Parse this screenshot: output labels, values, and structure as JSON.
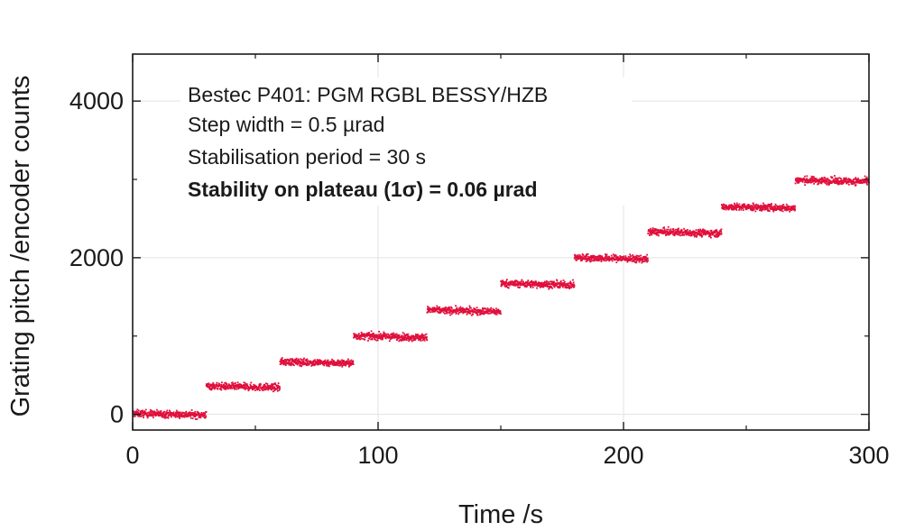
{
  "chart_data": {
    "type": "scatter",
    "title": "",
    "xlabel": "Time /s",
    "ylabel": "Grating pitch /encoder counts",
    "xlim": [
      0,
      300
    ],
    "ylim": [
      -200,
      4600
    ],
    "xticks": [
      0,
      100,
      200,
      300
    ],
    "yticks": [
      0,
      2000,
      4000
    ],
    "grid": true,
    "marker_color": "#e0103c",
    "annotations": [
      "Bestec P401: PGM RGBL BESSY/HZB",
      "Step width = 0.5 µrad",
      "Stabilisation period = 30 s",
      "Stability on plateau (1σ) = 0.06 µrad"
    ],
    "steps": [
      {
        "t_start": 0,
        "t_end": 30,
        "level": 0
      },
      {
        "t_start": 30,
        "t_end": 60,
        "level": 350
      },
      {
        "t_start": 60,
        "t_end": 90,
        "level": 660
      },
      {
        "t_start": 90,
        "t_end": 120,
        "level": 990
      },
      {
        "t_start": 120,
        "t_end": 150,
        "level": 1320
      },
      {
        "t_start": 150,
        "t_end": 180,
        "level": 1660
      },
      {
        "t_start": 180,
        "t_end": 210,
        "level": 1990
      },
      {
        "t_start": 210,
        "t_end": 240,
        "level": 2320
      },
      {
        "t_start": 240,
        "t_end": 270,
        "level": 2640
      },
      {
        "t_start": 270,
        "t_end": 300,
        "level": 2980
      }
    ]
  }
}
